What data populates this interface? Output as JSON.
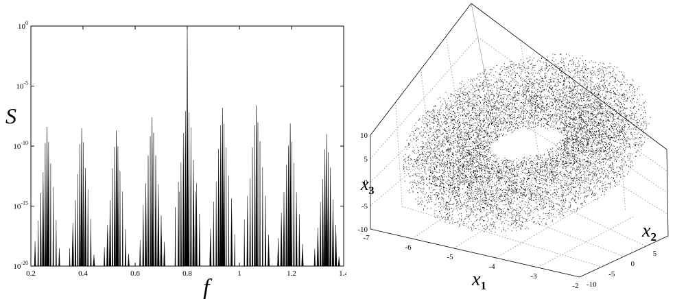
{
  "chart_data": [
    {
      "type": "line",
      "title": "",
      "xlabel": "f",
      "ylabel": "S",
      "xlim": [
        0.2,
        1.4
      ],
      "ylim_exponent": [
        -20,
        0
      ],
      "yscale": "log",
      "grid": false,
      "x_ticks": [
        "0.2",
        "0.4",
        "0.6",
        "0.8",
        "1",
        "1.2",
        "1.4"
      ],
      "y_ticks": [
        {
          "base": "10",
          "exp": "-20"
        },
        {
          "base": "10",
          "exp": "-15"
        },
        {
          "base": "10",
          "exp": "-10"
        },
        {
          "base": "10",
          "exp": "-5"
        },
        {
          "base": "10",
          "exp": "0"
        }
      ],
      "peak_groups": [
        {
          "center": 0.262,
          "log10_peak": -8.4
        },
        {
          "center": 0.395,
          "log10_peak": -8.5
        },
        {
          "center": 0.528,
          "log10_peak": -8.7
        },
        {
          "center": 0.665,
          "log10_peak": -7.6
        },
        {
          "center": 0.8,
          "log10_peak": 0.0
        },
        {
          "center": 0.935,
          "log10_peak": -6.8
        },
        {
          "center": 1.065,
          "log10_peak": -6.6
        },
        {
          "center": 1.195,
          "log10_peak": -8.1
        },
        {
          "center": 1.335,
          "log10_peak": -9.0
        }
      ]
    },
    {
      "type": "scatter",
      "title": "",
      "xlabel": {
        "base": "x",
        "sub": "1"
      },
      "ylabel": {
        "base": "x",
        "sub": "2"
      },
      "zlabel": {
        "base": "x",
        "sub": "3"
      },
      "xlim": [
        -7,
        -2
      ],
      "ylim": [
        -10,
        10
      ],
      "zlim": [
        -10,
        10
      ],
      "grid": true,
      "x_ticks": [
        "-7",
        "-6",
        "-5",
        "-4",
        "-3",
        "-2"
      ],
      "y_ticks": [
        "-10",
        "-5",
        "0",
        "5",
        "10"
      ],
      "z_ticks": [
        "-10",
        "-5",
        "0",
        "5",
        "10"
      ]
    }
  ]
}
